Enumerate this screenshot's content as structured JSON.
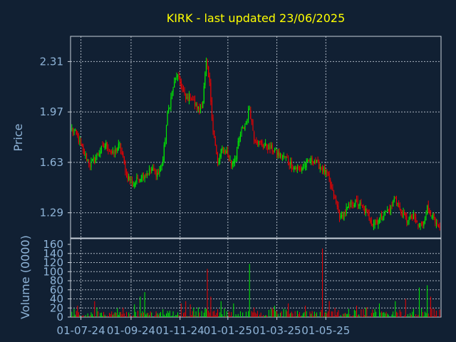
{
  "chart_data": {
    "type": "candlestick",
    "title": "KIRK - last updated 23/06/2025",
    "price_panel": {
      "ylabel": "Price",
      "yticks": [
        "2.31",
        "1.97",
        "1.63",
        "1.29"
      ],
      "ytick_values": [
        2.31,
        1.97,
        1.63,
        1.29
      ],
      "ylim": [
        1.12,
        2.48
      ],
      "up_color": "#00ee00",
      "down_color": "#ee0000",
      "anchors": [
        [
          0,
          1.85
        ],
        [
          5,
          1.8
        ],
        [
          10,
          1.7
        ],
        [
          16,
          1.62
        ],
        [
          20,
          1.65
        ],
        [
          26,
          1.72
        ],
        [
          30,
          1.75
        ],
        [
          36,
          1.68
        ],
        [
          42,
          1.75
        ],
        [
          48,
          1.55
        ],
        [
          54,
          1.48
        ],
        [
          58,
          1.52
        ],
        [
          64,
          1.55
        ],
        [
          70,
          1.58
        ],
        [
          76,
          1.55
        ],
        [
          80,
          1.65
        ],
        [
          84,
          1.95
        ],
        [
          88,
          2.1
        ],
        [
          92,
          2.22
        ],
        [
          96,
          2.15
        ],
        [
          100,
          2.05
        ],
        [
          104,
          2.08
        ],
        [
          108,
          2.02
        ],
        [
          112,
          1.98
        ],
        [
          115,
          2.05
        ],
        [
          118,
          2.3
        ],
        [
          121,
          2.15
        ],
        [
          124,
          1.85
        ],
        [
          128,
          1.62
        ],
        [
          132,
          1.72
        ],
        [
          136,
          1.7
        ],
        [
          140,
          1.62
        ],
        [
          144,
          1.68
        ],
        [
          148,
          1.82
        ],
        [
          152,
          1.88
        ],
        [
          156,
          2.0
        ],
        [
          160,
          1.8
        ],
        [
          164,
          1.76
        ],
        [
          170,
          1.74
        ],
        [
          176,
          1.72
        ],
        [
          182,
          1.68
        ],
        [
          188,
          1.66
        ],
        [
          194,
          1.6
        ],
        [
          200,
          1.58
        ],
        [
          206,
          1.62
        ],
        [
          212,
          1.65
        ],
        [
          218,
          1.6
        ],
        [
          224,
          1.55
        ],
        [
          228,
          1.45
        ],
        [
          232,
          1.35
        ],
        [
          236,
          1.25
        ],
        [
          240,
          1.3
        ],
        [
          246,
          1.36
        ],
        [
          252,
          1.35
        ],
        [
          258,
          1.3
        ],
        [
          264,
          1.22
        ],
        [
          270,
          1.25
        ],
        [
          276,
          1.3
        ],
        [
          280,
          1.32
        ],
        [
          284,
          1.4
        ],
        [
          288,
          1.3
        ],
        [
          294,
          1.24
        ],
        [
          300,
          1.26
        ],
        [
          304,
          1.2
        ],
        [
          308,
          1.22
        ],
        [
          312,
          1.32
        ],
        [
          316,
          1.28
        ],
        [
          320,
          1.2
        ],
        [
          323,
          1.17
        ]
      ],
      "n_bars": 324
    },
    "volume_panel": {
      "ylabel": "Volume (0000)",
      "yticks": [
        "0",
        "20",
        "40",
        "60",
        "80",
        "100",
        "120",
        "140",
        "160"
      ],
      "ytick_values": [
        0,
        20,
        40,
        60,
        80,
        100,
        120,
        140,
        160
      ],
      "ylim": [
        0,
        160
      ],
      "spikes": [
        [
          5,
          25
        ],
        [
          20,
          35
        ],
        [
          40,
          20
        ],
        [
          55,
          28
        ],
        [
          60,
          45
        ],
        [
          64,
          55
        ],
        [
          96,
          30
        ],
        [
          100,
          35
        ],
        [
          104,
          28
        ],
        [
          118,
          18
        ],
        [
          119,
          106
        ],
        [
          122,
          45
        ],
        [
          131,
          35
        ],
        [
          142,
          30
        ],
        [
          156,
          117
        ],
        [
          178,
          25
        ],
        [
          190,
          30
        ],
        [
          205,
          25
        ],
        [
          220,
          151
        ],
        [
          226,
          35
        ],
        [
          250,
          25
        ],
        [
          270,
          30
        ],
        [
          284,
          35
        ],
        [
          293,
          40
        ],
        [
          305,
          65
        ],
        [
          312,
          70
        ],
        [
          315,
          45
        ]
      ]
    },
    "x_axis": {
      "labels": [
        "01-07-24",
        "01-09-24",
        "01-11-24",
        "01-01-25",
        "01-03-25",
        "01-05-25"
      ],
      "label_bar_index": [
        8,
        52,
        95,
        137,
        180,
        223
      ]
    },
    "grid": true
  }
}
